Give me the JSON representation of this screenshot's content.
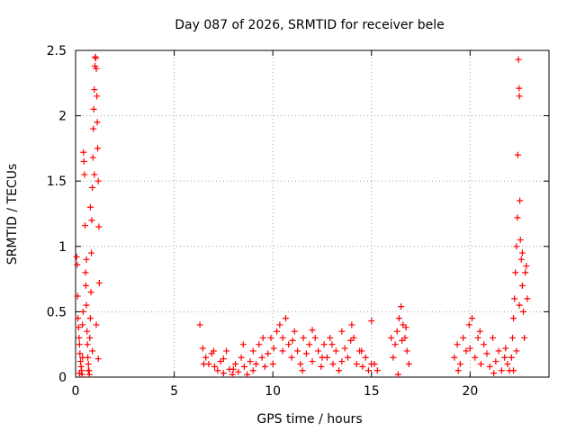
{
  "chart_data": {
    "type": "scatter",
    "title": "Day 087 of 2026, SRMTID for receiver bele",
    "xlabel": "GPS time / hours",
    "ylabel": "SRMTID / TECUs",
    "xlim": [
      0,
      24
    ],
    "ylim": [
      0,
      2.5
    ],
    "x_ticks": [
      0,
      5,
      10,
      15,
      20
    ],
    "x_tick_labels": [
      "0",
      "5",
      "10",
      "15",
      "20"
    ],
    "y_ticks": [
      0,
      0.5,
      1,
      1.5,
      2,
      2.5
    ],
    "y_tick_labels": [
      "0",
      "0.5",
      "1",
      "1.5",
      "2",
      "2.5"
    ],
    "grid": true,
    "marker": "+",
    "series": [
      {
        "name": "SRMTID",
        "color": "#ff0000",
        "points": [
          [
            0.05,
            0.92
          ],
          [
            0.08,
            0.86
          ],
          [
            0.1,
            0.62
          ],
          [
            0.12,
            0.45
          ],
          [
            0.15,
            0.38
          ],
          [
            0.18,
            0.3
          ],
          [
            0.2,
            0.25
          ],
          [
            0.22,
            0.18
          ],
          [
            0.25,
            0.12
          ],
          [
            0.28,
            0.08
          ],
          [
            0.3,
            0.05
          ],
          [
            0.32,
            0.02
          ],
          [
            0.35,
            0.4
          ],
          [
            0.38,
            0.5
          ],
          [
            0.4,
            1.72
          ],
          [
            0.42,
            1.65
          ],
          [
            0.45,
            1.55
          ],
          [
            0.48,
            1.16
          ],
          [
            0.5,
            0.8
          ],
          [
            0.52,
            0.7
          ],
          [
            0.55,
            0.55
          ],
          [
            0.58,
            0.35
          ],
          [
            0.6,
            0.25
          ],
          [
            0.62,
            0.15
          ],
          [
            0.65,
            0.1
          ],
          [
            0.68,
            0.05
          ],
          [
            0.7,
            0.02
          ],
          [
            0.72,
            0.3
          ],
          [
            0.75,
            0.45
          ],
          [
            0.78,
            0.65
          ],
          [
            0.8,
            0.95
          ],
          [
            0.82,
            1.2
          ],
          [
            0.85,
            1.45
          ],
          [
            0.88,
            1.68
          ],
          [
            0.9,
            1.9
          ],
          [
            0.92,
            2.05
          ],
          [
            0.95,
            2.2
          ],
          [
            0.98,
            2.38
          ],
          [
            1.0,
            2.45
          ],
          [
            1.02,
            2.44
          ],
          [
            1.05,
            2.36
          ],
          [
            1.08,
            2.15
          ],
          [
            1.1,
            1.95
          ],
          [
            1.12,
            1.75
          ],
          [
            1.15,
            1.5
          ],
          [
            1.18,
            1.15
          ],
          [
            1.2,
            0.72
          ],
          [
            0.2,
            0.03
          ],
          [
            0.35,
            0.15
          ],
          [
            0.55,
            0.9
          ],
          [
            0.65,
            0.05
          ],
          [
            0.75,
            1.3
          ],
          [
            0.85,
            0.2
          ],
          [
            0.95,
            1.55
          ],
          [
            1.05,
            0.4
          ],
          [
            1.15,
            0.14
          ],
          [
            6.3,
            0.4
          ],
          [
            6.45,
            0.22
          ],
          [
            6.6,
            0.15
          ],
          [
            6.75,
            0.1
          ],
          [
            6.9,
            0.18
          ],
          [
            7.05,
            0.08
          ],
          [
            7.2,
            0.05
          ],
          [
            7.35,
            0.12
          ],
          [
            7.5,
            0.03
          ],
          [
            7.65,
            0.2
          ],
          [
            7.8,
            0.06
          ],
          [
            7.95,
            0.02
          ],
          [
            8.1,
            0.1
          ],
          [
            8.25,
            0.04
          ],
          [
            8.4,
            0.15
          ],
          [
            8.55,
            0.08
          ],
          [
            8.7,
            0.02
          ],
          [
            8.85,
            0.12
          ],
          [
            9.0,
            0.2
          ],
          [
            9.15,
            0.1
          ],
          [
            9.3,
            0.25
          ],
          [
            9.45,
            0.15
          ],
          [
            9.6,
            0.08
          ],
          [
            9.75,
            0.18
          ],
          [
            9.9,
            0.3
          ],
          [
            10.05,
            0.22
          ],
          [
            10.2,
            0.35
          ],
          [
            10.35,
            0.4
          ],
          [
            10.5,
            0.3
          ],
          [
            10.65,
            0.45
          ],
          [
            10.8,
            0.25
          ],
          [
            10.95,
            0.15
          ],
          [
            11.1,
            0.35
          ],
          [
            11.25,
            0.2
          ],
          [
            11.4,
            0.1
          ],
          [
            11.55,
            0.3
          ],
          [
            11.7,
            0.18
          ],
          [
            11.85,
            0.25
          ],
          [
            12.0,
            0.12
          ],
          [
            12.15,
            0.3
          ],
          [
            12.3,
            0.2
          ],
          [
            12.45,
            0.08
          ],
          [
            12.6,
            0.25
          ],
          [
            12.75,
            0.15
          ],
          [
            12.9,
            0.3
          ],
          [
            13.05,
            0.1
          ],
          [
            13.2,
            0.2
          ],
          [
            13.35,
            0.05
          ],
          [
            13.5,
            0.35
          ],
          [
            13.65,
            0.22
          ],
          [
            13.8,
            0.15
          ],
          [
            13.95,
            0.28
          ],
          [
            14.1,
            0.3
          ],
          [
            14.25,
            0.1
          ],
          [
            14.4,
            0.2
          ],
          [
            14.55,
            0.08
          ],
          [
            14.7,
            0.15
          ],
          [
            14.85,
            0.05
          ],
          [
            15.0,
            0.43
          ],
          [
            15.15,
            0.1
          ],
          [
            15.3,
            0.05
          ],
          [
            6.5,
            0.1
          ],
          [
            7.0,
            0.2
          ],
          [
            7.5,
            0.14
          ],
          [
            8.0,
            0.06
          ],
          [
            8.5,
            0.25
          ],
          [
            9.0,
            0.05
          ],
          [
            9.5,
            0.3
          ],
          [
            10.0,
            0.1
          ],
          [
            10.5,
            0.2
          ],
          [
            11.0,
            0.28
          ],
          [
            11.5,
            0.05
          ],
          [
            12.0,
            0.36
          ],
          [
            12.5,
            0.15
          ],
          [
            13.0,
            0.25
          ],
          [
            13.5,
            0.12
          ],
          [
            14.0,
            0.4
          ],
          [
            14.5,
            0.2
          ],
          [
            15.0,
            0.1
          ],
          [
            16.0,
            0.3
          ],
          [
            16.1,
            0.15
          ],
          [
            16.2,
            0.25
          ],
          [
            16.3,
            0.35
          ],
          [
            16.4,
            0.45
          ],
          [
            16.5,
            0.54
          ],
          [
            16.6,
            0.4
          ],
          [
            16.7,
            0.3
          ],
          [
            16.8,
            0.2
          ],
          [
            16.9,
            0.1
          ],
          [
            16.35,
            0.02
          ],
          [
            16.55,
            0.28
          ],
          [
            16.75,
            0.38
          ],
          [
            19.2,
            0.15
          ],
          [
            19.35,
            0.25
          ],
          [
            19.5,
            0.1
          ],
          [
            19.65,
            0.3
          ],
          [
            19.8,
            0.2
          ],
          [
            19.95,
            0.4
          ],
          [
            20.1,
            0.45
          ],
          [
            20.25,
            0.15
          ],
          [
            20.4,
            0.3
          ],
          [
            20.55,
            0.1
          ],
          [
            20.7,
            0.25
          ],
          [
            20.85,
            0.18
          ],
          [
            21.0,
            0.08
          ],
          [
            21.15,
            0.3
          ],
          [
            21.3,
            0.12
          ],
          [
            21.45,
            0.2
          ],
          [
            21.6,
            0.05
          ],
          [
            21.75,
            0.15
          ],
          [
            21.9,
            0.1
          ],
          [
            22.0,
            0.05
          ],
          [
            19.4,
            0.05
          ],
          [
            20.0,
            0.22
          ],
          [
            20.5,
            0.35
          ],
          [
            21.2,
            0.03
          ],
          [
            21.8,
            0.22
          ],
          [
            22.1,
            0.15
          ],
          [
            22.15,
            0.3
          ],
          [
            22.2,
            0.45
          ],
          [
            22.25,
            0.6
          ],
          [
            22.3,
            0.8
          ],
          [
            22.35,
            1.0
          ],
          [
            22.4,
            1.22
          ],
          [
            22.42,
            1.7
          ],
          [
            22.45,
            2.43
          ],
          [
            22.48,
            2.21
          ],
          [
            22.5,
            2.15
          ],
          [
            22.52,
            1.35
          ],
          [
            22.55,
            1.05
          ],
          [
            22.6,
            0.9
          ],
          [
            22.65,
            0.7
          ],
          [
            22.7,
            0.5
          ],
          [
            22.75,
            0.3
          ],
          [
            22.8,
            0.8
          ],
          [
            22.85,
            0.85
          ],
          [
            22.9,
            0.6
          ],
          [
            22.2,
            0.05
          ],
          [
            22.35,
            0.2
          ],
          [
            22.5,
            0.55
          ],
          [
            22.65,
            0.95
          ]
        ]
      }
    ]
  }
}
